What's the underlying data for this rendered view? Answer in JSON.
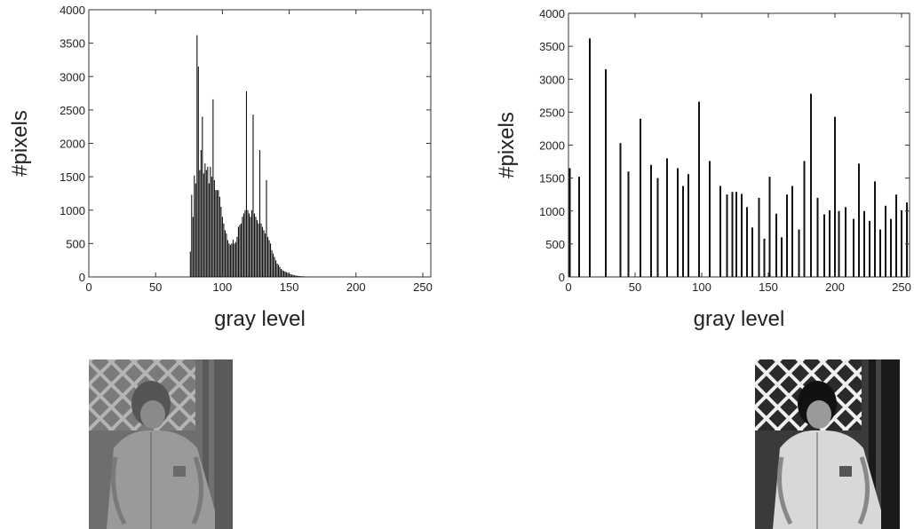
{
  "chart_data": [
    {
      "type": "bar",
      "title": "",
      "xlabel": "gray level",
      "ylabel": "#pixels",
      "xlim": [
        0,
        256
      ],
      "ylim": [
        0,
        4000
      ],
      "xticks": [
        0,
        50,
        100,
        150,
        200,
        250
      ],
      "yticks": [
        0,
        500,
        1000,
        1500,
        2000,
        2500,
        3000,
        3500,
        4000
      ],
      "grid": false,
      "x": [
        76,
        77,
        78,
        79,
        80,
        81,
        82,
        83,
        84,
        85,
        86,
        87,
        88,
        89,
        90,
        91,
        92,
        93,
        94,
        95,
        96,
        97,
        98,
        99,
        100,
        101,
        102,
        103,
        104,
        105,
        106,
        107,
        108,
        109,
        110,
        111,
        112,
        113,
        114,
        115,
        116,
        117,
        118,
        119,
        120,
        121,
        122,
        123,
        124,
        125,
        126,
        127,
        128,
        129,
        130,
        131,
        132,
        133,
        134,
        135,
        136,
        137,
        138,
        139,
        140,
        141,
        142,
        143,
        144,
        145,
        146,
        147,
        148,
        149,
        150,
        151,
        152,
        153,
        154,
        155,
        156,
        157,
        158,
        159,
        160,
        161,
        162,
        163,
        164,
        165,
        166,
        167,
        168,
        169,
        170,
        172,
        174,
        176,
        178,
        180,
        183,
        186,
        190,
        195,
        200,
        205,
        210,
        215,
        220
      ],
      "values": [
        380,
        1230,
        900,
        1520,
        1400,
        3620,
        3150,
        1600,
        1900,
        2400,
        1550,
        1700,
        1600,
        1650,
        1400,
        1650,
        1500,
        2660,
        1450,
        1300,
        1300,
        1300,
        1200,
        1050,
        900,
        800,
        700,
        650,
        550,
        500,
        480,
        500,
        560,
        500,
        520,
        600,
        750,
        780,
        800,
        900,
        950,
        1000,
        2780,
        1000,
        950,
        900,
        1000,
        2430,
        950,
        900,
        850,
        800,
        1900,
        800,
        750,
        700,
        650,
        1450,
        600,
        550,
        500,
        400,
        350,
        300,
        250,
        200,
        180,
        150,
        120,
        100,
        90,
        80,
        70,
        60,
        50,
        40,
        35,
        30,
        25,
        20,
        18,
        15,
        12,
        10,
        10,
        8,
        7,
        6,
        5,
        5,
        4,
        4,
        3,
        3,
        2,
        2,
        2,
        2,
        2,
        2,
        2,
        2,
        2,
        2,
        1,
        1,
        1,
        1,
        1
      ]
    },
    {
      "type": "bar",
      "title": "",
      "xlabel": "gray level",
      "ylabel": "#pixels",
      "xlim": [
        0,
        256
      ],
      "ylim": [
        0,
        4000
      ],
      "xticks": [
        0,
        50,
        100,
        150,
        200,
        250
      ],
      "yticks": [
        0,
        500,
        1000,
        1500,
        2000,
        2500,
        3000,
        3500,
        4000
      ],
      "grid": false,
      "x": [
        1,
        8,
        16,
        28,
        39,
        45,
        54,
        62,
        67,
        74,
        82,
        86,
        90,
        98,
        106,
        114,
        119,
        123,
        126,
        130,
        134,
        138,
        143,
        147,
        151,
        156,
        160,
        164,
        168,
        173,
        177,
        182,
        187,
        192,
        196,
        200,
        203,
        208,
        214,
        218,
        222,
        226,
        230,
        234,
        238,
        242,
        246,
        250,
        254
      ],
      "values": [
        1650,
        1520,
        3620,
        3150,
        2030,
        1600,
        2400,
        1700,
        1500,
        1800,
        1650,
        1380,
        1560,
        2660,
        1760,
        1380,
        1250,
        1290,
        1290,
        1260,
        1060,
        750,
        1200,
        580,
        1520,
        960,
        600,
        1250,
        1380,
        720,
        1760,
        2780,
        1200,
        950,
        1010,
        2430,
        1000,
        1060,
        880,
        1720,
        1000,
        850,
        1450,
        720,
        1080,
        880,
        1250,
        1010,
        1130
      ]
    }
  ],
  "photos": {
    "left_description_icon": "grayscale-photo-low-contrast",
    "right_description_icon": "grayscale-photo-equalized"
  }
}
